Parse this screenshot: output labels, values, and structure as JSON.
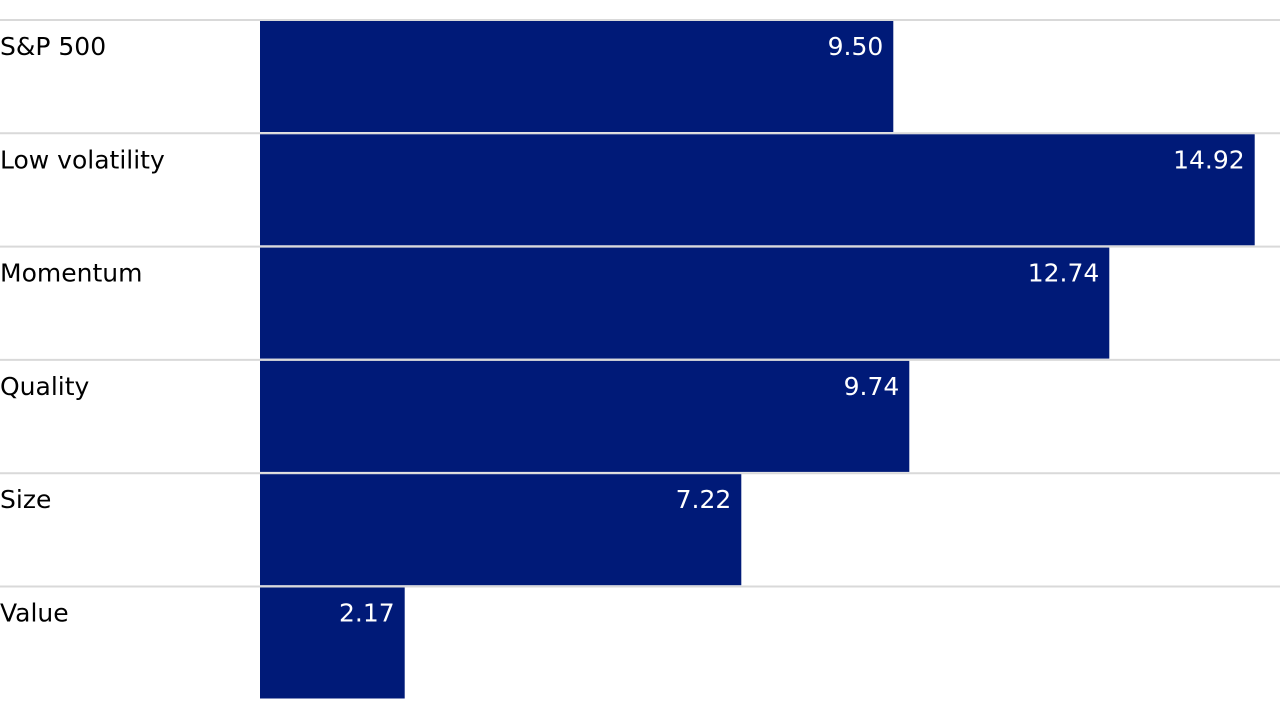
{
  "chart_data": {
    "type": "bar",
    "orientation": "horizontal",
    "categories": [
      "S&P 500",
      "Low volatility",
      "Momentum",
      "Quality",
      "Size",
      "Value"
    ],
    "values": [
      9.5,
      14.92,
      12.74,
      9.74,
      7.22,
      2.17
    ],
    "value_labels": [
      "9.50",
      "14.92",
      "12.74",
      "9.74",
      "7.22",
      "2.17"
    ],
    "title": "",
    "xlabel": "",
    "ylabel": "",
    "xlim": [
      0,
      15
    ],
    "grid": false,
    "legend": "none",
    "colors": {
      "bar": "#001a78",
      "separator": "#d9d9d9",
      "background": "#ffffff"
    }
  }
}
